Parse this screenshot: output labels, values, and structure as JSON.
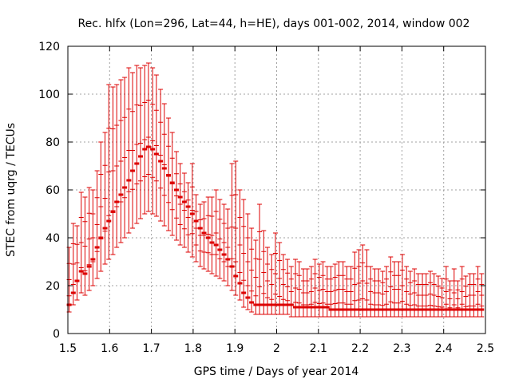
{
  "chart_data": {
    "type": "scatter",
    "title": "Rec. hlfx (Lon=296, Lat=44, h=HE), days 001-002, 2014, window 002",
    "xlabel": "GPS time / Days of year 2014",
    "ylabel": "STEC from uqrg / TECUs",
    "xlim": [
      1.5,
      2.5
    ],
    "ylim": [
      0,
      120
    ],
    "xticks": [
      1.5,
      1.6,
      1.7,
      1.8,
      1.9,
      2.0,
      2.1,
      2.2,
      2.3,
      2.4,
      2.5
    ],
    "xtick_labels": [
      "1.5",
      "1.6",
      "1.7",
      "1.8",
      "1.9",
      "2",
      "2.1",
      "2.2",
      "2.3",
      "2.4",
      "2.5"
    ],
    "yticks": [
      0,
      20,
      40,
      60,
      80,
      100,
      120
    ],
    "ytick_labels": [
      "0",
      "20",
      "40",
      "60",
      "80",
      "100",
      "120"
    ],
    "grid": true,
    "color": "#dd0000",
    "grid_color": "#a0a0a0",
    "series": [
      {
        "style": "errorbar",
        "x": [
          1.503,
          1.513,
          1.522,
          1.532,
          1.541,
          1.551,
          1.56,
          1.57,
          1.579,
          1.589,
          1.598,
          1.608,
          1.617,
          1.627,
          1.636,
          1.646,
          1.655,
          1.665,
          1.674,
          1.684,
          1.693,
          1.703,
          1.712,
          1.722,
          1.731,
          1.741,
          1.75,
          1.76,
          1.769,
          1.779,
          1.788,
          1.798,
          1.807,
          1.817,
          1.826,
          1.836,
          1.845,
          1.855,
          1.864,
          1.874,
          1.883,
          1.893,
          1.902,
          1.912,
          1.921,
          1.931,
          1.94,
          1.95,
          1.959,
          1.969,
          1.978,
          1.988,
          1.997,
          2.007,
          2.016,
          2.026,
          2.035,
          2.045,
          2.054,
          2.064,
          2.073,
          2.083,
          2.092,
          2.102,
          2.111,
          2.121,
          2.13,
          2.14,
          2.149,
          2.159,
          2.168,
          2.178,
          2.187,
          2.197,
          2.206,
          2.216,
          2.225,
          2.235,
          2.244,
          2.254,
          2.263,
          2.273,
          2.282,
          2.292,
          2.301,
          2.311,
          2.32,
          2.33,
          2.339,
          2.349,
          2.358,
          2.368,
          2.377,
          2.387,
          2.396,
          2.406,
          2.415,
          2.425,
          2.434,
          2.444,
          2.453,
          2.463,
          2.472,
          2.482,
          2.491
        ],
        "y": [
          12,
          17,
          22,
          26,
          25,
          28,
          31,
          36,
          40,
          44,
          47,
          51,
          55,
          58,
          61,
          64,
          68,
          71,
          74,
          77,
          78,
          77,
          75,
          72,
          69,
          66,
          63,
          60,
          57,
          55,
          53,
          50,
          47,
          44,
          42,
          40,
          38,
          37,
          35,
          33,
          31,
          28,
          24,
          21,
          17,
          15,
          13,
          12,
          12,
          12,
          12,
          12,
          12,
          12,
          12,
          12,
          12,
          11,
          11,
          11,
          11,
          11,
          11,
          11,
          11,
          11,
          10,
          10,
          10,
          10,
          10,
          10,
          10,
          10,
          10,
          10,
          10,
          10,
          10,
          10,
          10,
          10,
          10,
          10,
          10,
          10,
          10,
          10,
          10,
          10,
          10,
          10,
          10,
          10,
          10,
          10,
          10,
          10,
          10,
          10,
          10,
          10,
          10,
          10,
          10
        ],
        "ylow": [
          9,
          12,
          14,
          17,
          16,
          18,
          20,
          23,
          26,
          29,
          31,
          33,
          36,
          38,
          40,
          42,
          44,
          46,
          48,
          50,
          51,
          50,
          49,
          47,
          45,
          43,
          41,
          39,
          37,
          36,
          34,
          32,
          30,
          28,
          27,
          26,
          25,
          24,
          23,
          22,
          20,
          18,
          16,
          14,
          11,
          10,
          9,
          8,
          8,
          8,
          8,
          8,
          8,
          8,
          8,
          8,
          7,
          7,
          7,
          7,
          7,
          7,
          7,
          7,
          7,
          7,
          7,
          7,
          7,
          7,
          7,
          7,
          7,
          7,
          7,
          7,
          7,
          7,
          7,
          7,
          7,
          7,
          7,
          7,
          7,
          7,
          7,
          7,
          7,
          7,
          7,
          7,
          7,
          7,
          7,
          7,
          7,
          7,
          7,
          7,
          7,
          7,
          7,
          7,
          7
        ],
        "yhigh": [
          36,
          46,
          45,
          59,
          57,
          61,
          60,
          68,
          80,
          84,
          104,
          103,
          104,
          106,
          107,
          111,
          109,
          112,
          111,
          112,
          113,
          111,
          108,
          102,
          96,
          90,
          84,
          76,
          71,
          67,
          63,
          71,
          58,
          54,
          55,
          57,
          57,
          60,
          56,
          54,
          52,
          71,
          72,
          60,
          56,
          50,
          44,
          39,
          54,
          43,
          36,
          33,
          42,
          38,
          33,
          31,
          28,
          31,
          30,
          27,
          27,
          28,
          31,
          29,
          30,
          28,
          28,
          29,
          30,
          30,
          28,
          28,
          34,
          35,
          37,
          35,
          28,
          27,
          27,
          26,
          28,
          32,
          30,
          30,
          33,
          28,
          26,
          27,
          25,
          25,
          25,
          26,
          25,
          24,
          23,
          28,
          22,
          27,
          22,
          28,
          24,
          25,
          25,
          28,
          25
        ],
        "ymark_band": [
          [
            9,
            36
          ],
          [
            12,
            46
          ],
          [
            14,
            45
          ],
          [
            17,
            59
          ],
          [
            16,
            57
          ],
          [
            18,
            61
          ],
          [
            20,
            60
          ],
          [
            23,
            68
          ],
          [
            26,
            80
          ],
          [
            29,
            84
          ],
          [
            31,
            104
          ],
          [
            33,
            103
          ],
          [
            36,
            104
          ],
          [
            38,
            106
          ],
          [
            40,
            107
          ],
          [
            42,
            111
          ],
          [
            44,
            109
          ],
          [
            46,
            112
          ],
          [
            48,
            111
          ],
          [
            50,
            112
          ],
          [
            51,
            113
          ],
          [
            50,
            111
          ],
          [
            49,
            108
          ],
          [
            47,
            102
          ],
          [
            45,
            96
          ],
          [
            43,
            90
          ],
          [
            41,
            84
          ],
          [
            39,
            76
          ],
          [
            37,
            71
          ],
          [
            36,
            67
          ],
          [
            34,
            63
          ],
          [
            32,
            71
          ],
          [
            30,
            58
          ],
          [
            28,
            54
          ],
          [
            27,
            55
          ],
          [
            26,
            57
          ],
          [
            25,
            57
          ],
          [
            24,
            60
          ],
          [
            23,
            56
          ],
          [
            22,
            54
          ],
          [
            20,
            52
          ],
          [
            18,
            71
          ],
          [
            16,
            72
          ],
          [
            14,
            60
          ],
          [
            11,
            56
          ],
          [
            10,
            50
          ],
          [
            9,
            44
          ],
          [
            8,
            39
          ],
          [
            8,
            54
          ],
          [
            8,
            43
          ],
          [
            8,
            36
          ],
          [
            8,
            33
          ],
          [
            8,
            42
          ],
          [
            8,
            38
          ],
          [
            8,
            33
          ],
          [
            8,
            31
          ],
          [
            7,
            28
          ],
          [
            7,
            31
          ],
          [
            7,
            30
          ],
          [
            7,
            27
          ],
          [
            7,
            27
          ],
          [
            7,
            28
          ],
          [
            7,
            31
          ],
          [
            7,
            29
          ],
          [
            7,
            30
          ],
          [
            7,
            28
          ],
          [
            7,
            28
          ],
          [
            7,
            29
          ],
          [
            7,
            30
          ],
          [
            7,
            30
          ],
          [
            7,
            28
          ],
          [
            7,
            28
          ],
          [
            7,
            34
          ],
          [
            7,
            35
          ],
          [
            7,
            37
          ],
          [
            7,
            35
          ],
          [
            7,
            28
          ],
          [
            7,
            27
          ],
          [
            7,
            27
          ],
          [
            7,
            26
          ],
          [
            7,
            28
          ],
          [
            7,
            32
          ],
          [
            7,
            30
          ],
          [
            7,
            30
          ],
          [
            7,
            33
          ],
          [
            7,
            28
          ],
          [
            7,
            26
          ],
          [
            7,
            27
          ],
          [
            7,
            25
          ],
          [
            7,
            25
          ],
          [
            7,
            25
          ],
          [
            7,
            26
          ],
          [
            7,
            25
          ],
          [
            7,
            24
          ],
          [
            7,
            23
          ],
          [
            7,
            28
          ],
          [
            7,
            22
          ],
          [
            7,
            27
          ],
          [
            7,
            22
          ],
          [
            7,
            28
          ],
          [
            7,
            24
          ],
          [
            7,
            25
          ],
          [
            7,
            25
          ],
          [
            7,
            28
          ],
          [
            7,
            25
          ]
        ]
      }
    ]
  }
}
